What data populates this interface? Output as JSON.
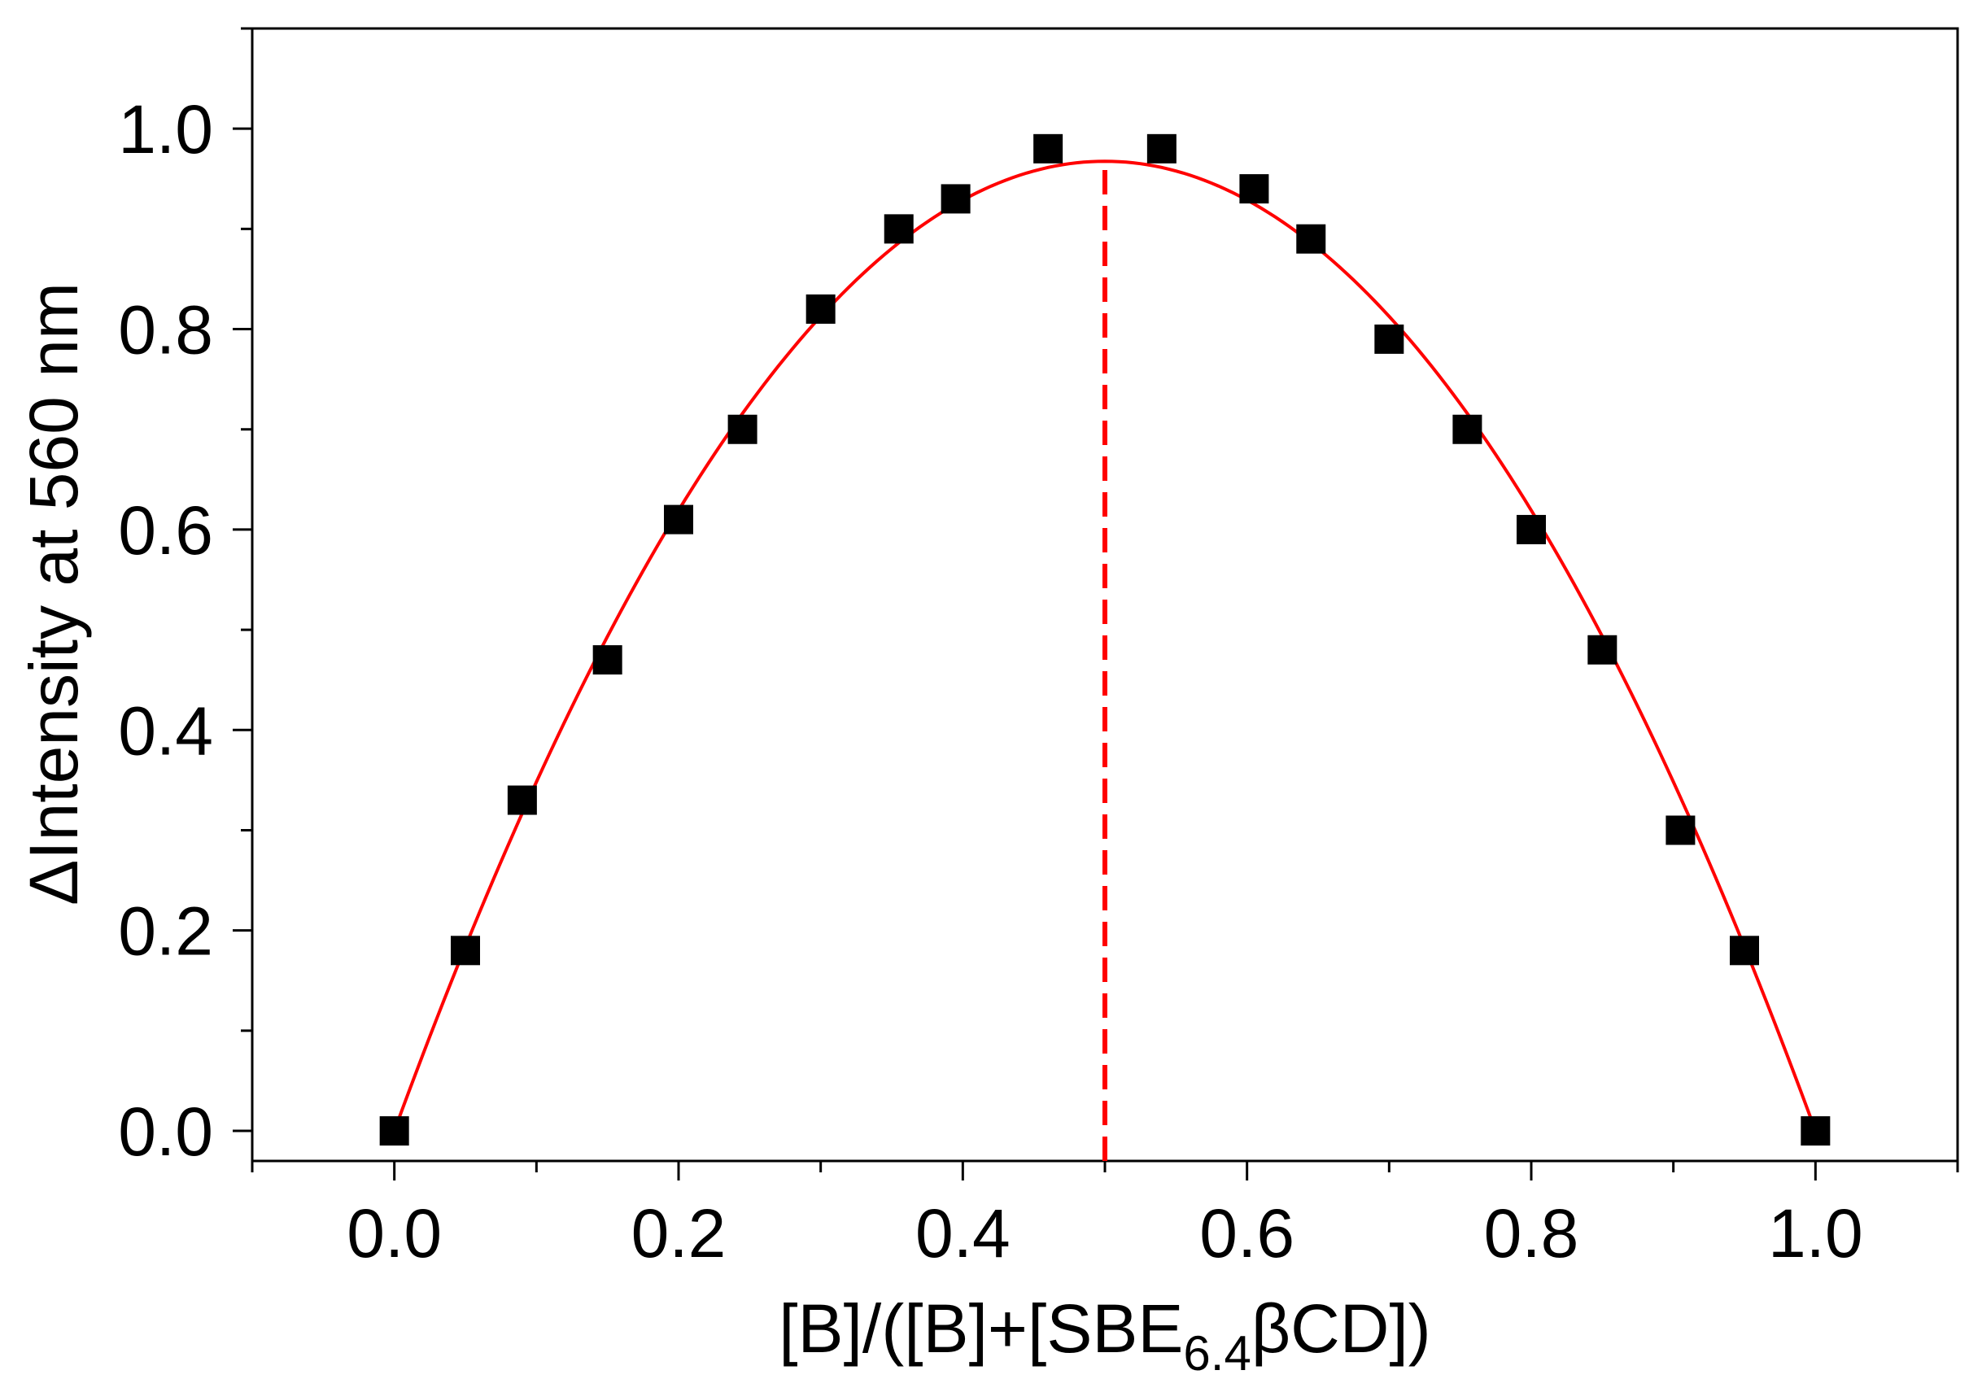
{
  "chart_data": {
    "type": "scatter",
    "title": "",
    "xlabel": {
      "prefix": "[B]/([B]+[SBE",
      "subscript": "6.4",
      "suffix": "βCD])"
    },
    "ylabel": "ΔIntensity at 560 nm",
    "xlim": [
      -0.1,
      1.1
    ],
    "ylim": [
      -0.03,
      1.1
    ],
    "x_ticks": [
      "0.0",
      "0.2",
      "0.4",
      "0.6",
      "0.8",
      "1.0"
    ],
    "y_ticks": [
      "0.0",
      "0.2",
      "0.4",
      "0.6",
      "0.8",
      "1.0"
    ],
    "grid": false,
    "legend": "none",
    "series": [
      {
        "marker": "square",
        "color": "#000000",
        "x": [
          0.0,
          0.05,
          0.09,
          0.15,
          0.2,
          0.245,
          0.3,
          0.355,
          0.395,
          0.46,
          0.54,
          0.605,
          0.645,
          0.7,
          0.755,
          0.8,
          0.85,
          0.905,
          0.95,
          1.0
        ],
        "y": [
          0.0,
          0.18,
          0.33,
          0.47,
          0.61,
          0.7,
          0.82,
          0.9,
          0.93,
          0.98,
          0.98,
          0.94,
          0.89,
          0.79,
          0.7,
          0.6,
          0.48,
          0.3,
          0.18,
          0.0
        ]
      }
    ],
    "fit_curve": {
      "type": "polynomial",
      "color": "#ff0000",
      "coefficients": [
        0.0,
        3.87,
        -3.87
      ],
      "x_range": [
        0.0,
        1.0
      ]
    },
    "reference_line": {
      "orientation": "vertical",
      "x": 0.5,
      "y_from": -0.03,
      "y_to": 0.97,
      "style": "dashed",
      "color": "#ff0000"
    }
  }
}
